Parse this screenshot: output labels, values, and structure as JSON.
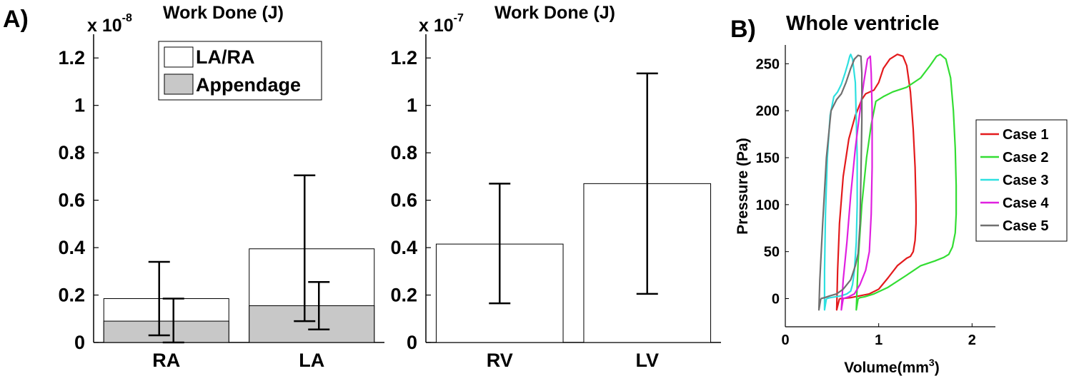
{
  "panels": {
    "a": {
      "label": "A)",
      "left_chart": {
        "scale": "x 10",
        "scale_exp": "-8",
        "title": "Work Done (J)",
        "legend": [
          "LA/RA",
          "Appendage"
        ]
      },
      "right_chart": {
        "scale": "x 10",
        "scale_exp": "-7",
        "title": "Work Done (J)"
      }
    },
    "b": {
      "label": "B)",
      "title": "Whole ventricle",
      "xlabel": "Volume(mm",
      "xlabel_sup": "3",
      "xlabel_close": ")",
      "ylabel": "Pressure (Pa)"
    }
  },
  "colors": {
    "appendage_fill": "#c8c8c8",
    "bar_fill": "#ffffff",
    "case1": "#e31a1c",
    "case2": "#33dd33",
    "case3": "#2ee0e0",
    "case4": "#e020e0",
    "case5": "#707070"
  },
  "chart_data": [
    {
      "type": "bar",
      "title": "Work Done (J)",
      "scale_note": "x 10^-8",
      "categories": [
        "RA",
        "LA"
      ],
      "ylim": [
        0,
        1.3
      ],
      "yticks": [
        0,
        0.2,
        0.4,
        0.6,
        0.8,
        1,
        1.2
      ],
      "ytick_labels": [
        "0",
        "0.2",
        "0.4",
        "0.6",
        "0.8",
        "1",
        "1.2"
      ],
      "series": [
        {
          "name": "LA/RA",
          "values": [
            0.185,
            0.395
          ],
          "err_low": [
            0.03,
            0.09
          ],
          "err_high": [
            0.34,
            0.705
          ]
        },
        {
          "name": "Appendage",
          "values": [
            0.09,
            0.155
          ],
          "err_low": [
            0.0,
            0.055
          ],
          "err_high": [
            0.185,
            0.255
          ]
        }
      ],
      "legend_position": "top-right"
    },
    {
      "type": "bar",
      "title": "Work Done (J)",
      "scale_note": "x 10^-7",
      "categories": [
        "RV",
        "LV"
      ],
      "ylim": [
        0,
        1.3
      ],
      "yticks": [
        0,
        0.2,
        0.4,
        0.6,
        0.8,
        1,
        1.2
      ],
      "ytick_labels": [
        "0",
        "0.2",
        "0.4",
        "0.6",
        "0.8",
        "1",
        "1.2"
      ],
      "values": [
        0.415,
        0.67
      ],
      "err_low": [
        0.165,
        0.205
      ],
      "err_high": [
        0.67,
        1.135
      ]
    },
    {
      "type": "line",
      "title": "Whole ventricle",
      "xlabel": "Volume(mm3)",
      "ylabel": "Pressure (Pa)",
      "xlim": [
        0,
        2.25
      ],
      "ylim": [
        -30,
        270
      ],
      "xticks": [
        0,
        1,
        2
      ],
      "xtick_labels": [
        "0",
        "1",
        "2"
      ],
      "yticks": [
        0,
        50,
        100,
        150,
        200,
        250
      ],
      "ytick_labels": [
        "0",
        "50",
        "100",
        "150",
        "200",
        "250"
      ],
      "legend_position": "right",
      "series": [
        {
          "name": "Case 1",
          "x": [
            0.58,
            0.55,
            0.56,
            0.58,
            0.62,
            0.68,
            0.75,
            0.82,
            0.86,
            0.95,
            1.0,
            1.05,
            1.12,
            1.2,
            1.26,
            1.3,
            1.34,
            1.37,
            1.39,
            1.4,
            1.4,
            1.39,
            1.37,
            1.34,
            1.3,
            1.2,
            1.1,
            1.0,
            0.9,
            0.8,
            0.7,
            0.6,
            0.58
          ],
          "y": [
            0,
            -12,
            30,
            80,
            130,
            170,
            195,
            212,
            218,
            222,
            230,
            245,
            255,
            260,
            258,
            248,
            220,
            180,
            140,
            100,
            80,
            62,
            50,
            45,
            43,
            35,
            22,
            10,
            5,
            3,
            1,
            0,
            0
          ]
        },
        {
          "name": "Case 2",
          "x": [
            0.78,
            0.76,
            0.78,
            0.82,
            0.87,
            0.92,
            0.97,
            1.05,
            1.15,
            1.3,
            1.45,
            1.55,
            1.62,
            1.66,
            1.72,
            1.77,
            1.8,
            1.82,
            1.83,
            1.83,
            1.82,
            1.79,
            1.75,
            1.7,
            1.6,
            1.45,
            1.3,
            1.1,
            0.95,
            0.85,
            0.8,
            0.78
          ],
          "y": [
            0,
            -12,
            40,
            100,
            150,
            185,
            210,
            215,
            220,
            225,
            235,
            248,
            258,
            260,
            255,
            235,
            200,
            160,
            120,
            90,
            70,
            55,
            47,
            44,
            40,
            35,
            25,
            12,
            5,
            2,
            1,
            0
          ]
        },
        {
          "name": "Case 3",
          "x": [
            0.44,
            0.42,
            0.42,
            0.43,
            0.45,
            0.48,
            0.52,
            0.56,
            0.6,
            0.64,
            0.67,
            0.69,
            0.7,
            0.72,
            0.75,
            0.76,
            0.77,
            0.77,
            0.76,
            0.74,
            0.72,
            0.7,
            0.66,
            0.6,
            0.54,
            0.48,
            0.44
          ],
          "y": [
            0,
            -12,
            30,
            90,
            150,
            195,
            215,
            220,
            228,
            240,
            250,
            258,
            260,
            255,
            230,
            190,
            150,
            100,
            60,
            30,
            15,
            8,
            5,
            3,
            2,
            1,
            0
          ]
        },
        {
          "name": "Case 4",
          "x": [
            0.62,
            0.6,
            0.62,
            0.66,
            0.7,
            0.75,
            0.8,
            0.84,
            0.88,
            0.91,
            0.92,
            0.93,
            0.93,
            0.92,
            0.9,
            0.86,
            0.8,
            0.74,
            0.68,
            0.62
          ],
          "y": [
            0,
            -12,
            20,
            60,
            110,
            160,
            200,
            230,
            255,
            258,
            240,
            200,
            140,
            90,
            50,
            30,
            15,
            5,
            2,
            0
          ]
        },
        {
          "name": "Case 5",
          "x": [
            0.38,
            0.36,
            0.37,
            0.4,
            0.44,
            0.49,
            0.55,
            0.6,
            0.65,
            0.7,
            0.74,
            0.78,
            0.81,
            0.82,
            0.82,
            0.81,
            0.8,
            0.78,
            0.75,
            0.7,
            0.62,
            0.55,
            0.48,
            0.42,
            0.38
          ],
          "y": [
            0,
            -12,
            20,
            80,
            150,
            200,
            212,
            218,
            230,
            245,
            255,
            259,
            258,
            240,
            190,
            130,
            80,
            48,
            35,
            20,
            10,
            5,
            3,
            1,
            0
          ]
        }
      ]
    }
  ]
}
